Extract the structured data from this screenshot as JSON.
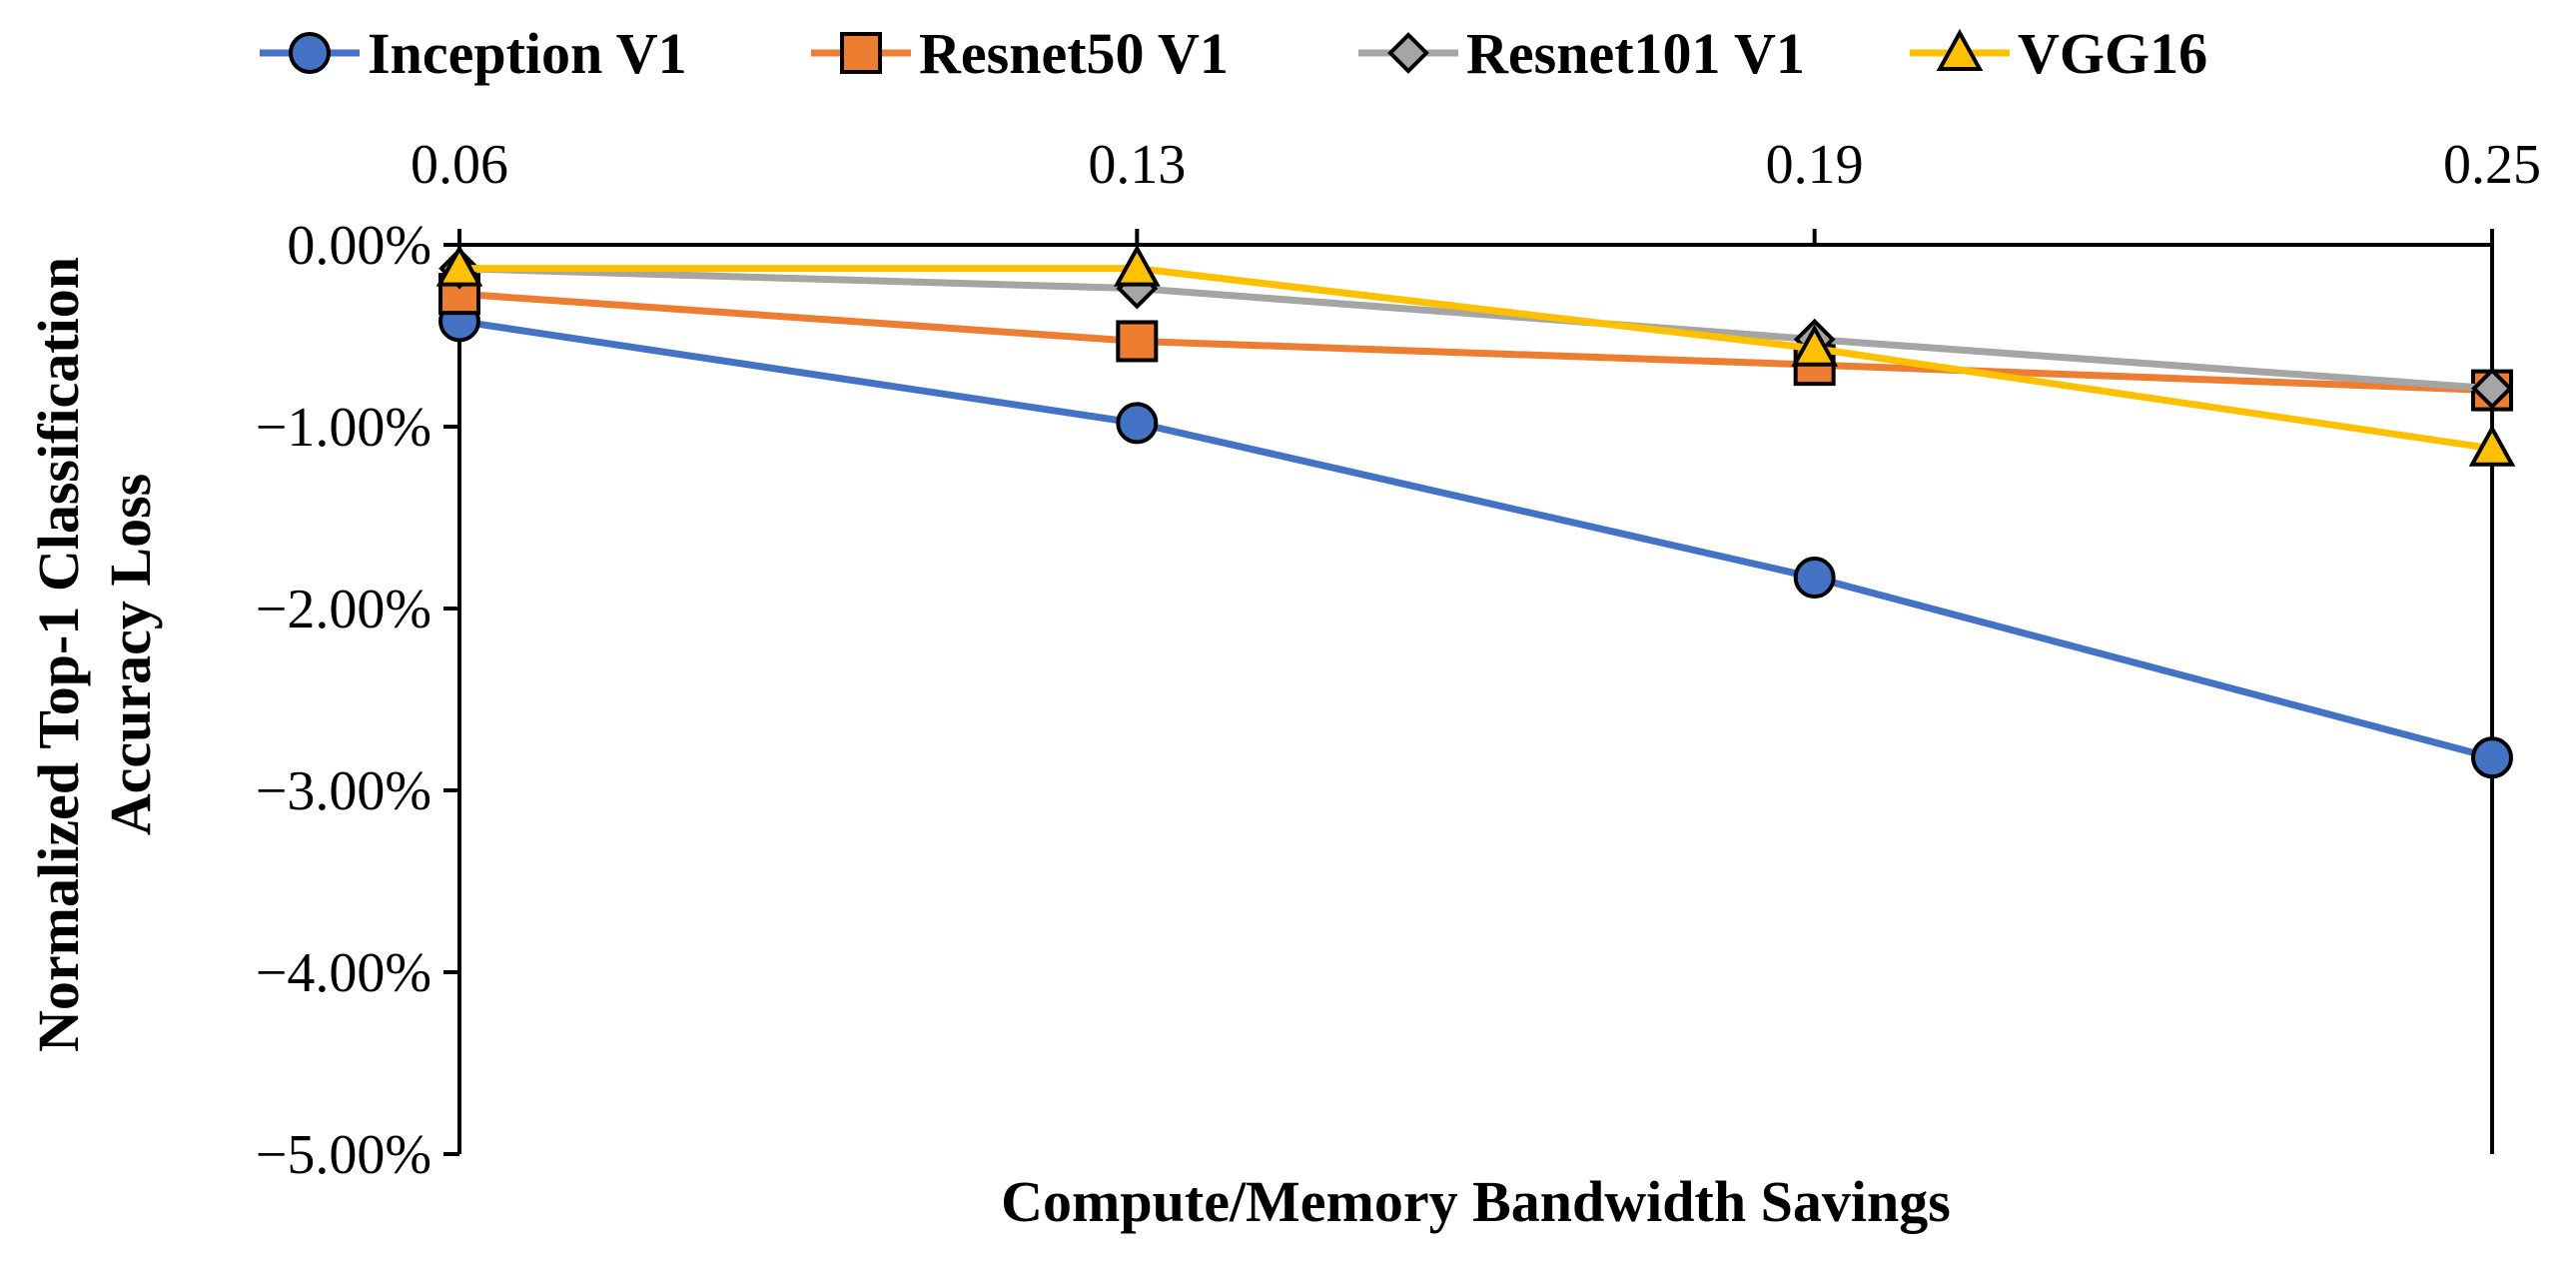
{
  "chart_data": {
    "type": "line",
    "title": "",
    "xlabel": "Compute/Memory Bandwidth Savings",
    "ylabel_lines": [
      "Normalized Top-1 Classification",
      "Accuracy Loss"
    ],
    "x": [
      0.06,
      0.13,
      0.19,
      0.25
    ],
    "x_tick_labels": [
      "0.06",
      "0.13",
      "0.19",
      "0.25"
    ],
    "x_axis_position": "top",
    "ylim": [
      -5.0,
      0.0
    ],
    "y_ticks": [
      0,
      -1,
      -2,
      -3,
      -4,
      -5
    ],
    "y_tick_labels": [
      "0.00%",
      "−1.00%",
      "−2.00%",
      "−3.00%",
      "−4.00%",
      "−5.00%"
    ],
    "y_unit": "%",
    "grid": false,
    "legend_position": "top",
    "series": [
      {
        "name": "Inception V1",
        "marker": "circle",
        "color": "#4472C4",
        "values": [
          -0.42,
          -0.98,
          -1.83,
          -2.82
        ]
      },
      {
        "name": "Resnet50 V1",
        "marker": "square",
        "color": "#ED7D31",
        "values": [
          -0.27,
          -0.53,
          -0.66,
          -0.8
        ]
      },
      {
        "name": "Resnet101 V1",
        "marker": "diamond",
        "color": "#A5A5A5",
        "values": [
          -0.13,
          -0.24,
          -0.52,
          -0.79
        ]
      },
      {
        "name": "VGG16",
        "marker": "triangle",
        "color": "#FFC000",
        "values": [
          -0.13,
          -0.13,
          -0.57,
          -1.12
        ]
      }
    ]
  }
}
